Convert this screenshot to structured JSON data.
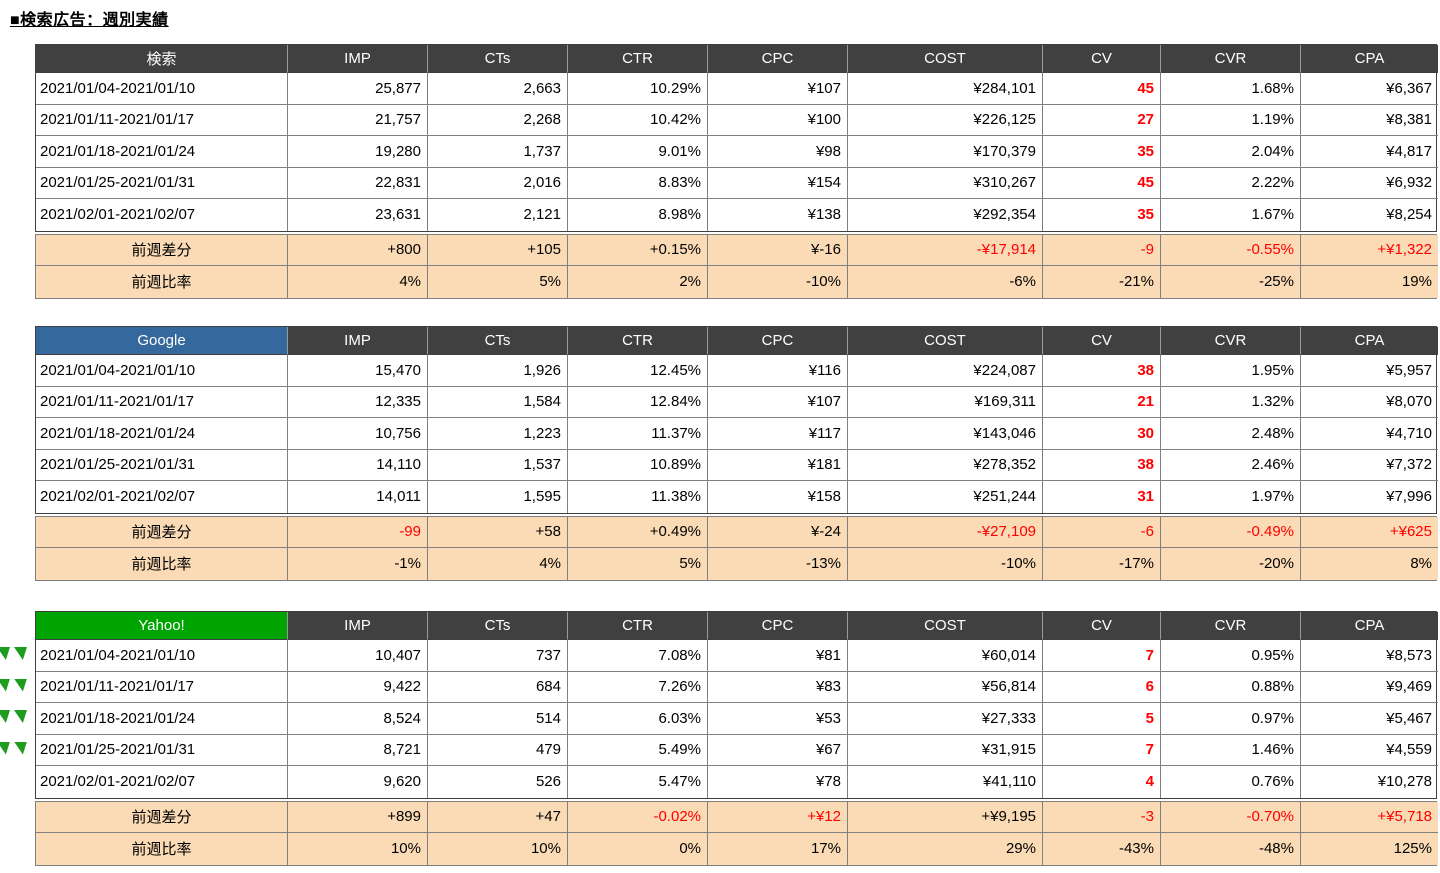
{
  "title": "■検索広告：週別実績",
  "columns": [
    "IMP",
    "CTs",
    "CTR",
    "CPC",
    "COST",
    "CV",
    "CVR",
    "CPA"
  ],
  "colors": {
    "header_bg": "#404040",
    "header_text": "#ffffff",
    "summary_bg": "#fbdbb5",
    "negative_red": "#ff0000",
    "flag_green": "#1e9c1e",
    "search_label_bg": "#404040",
    "google_label_bg": "#35699e",
    "yahoo_label_bg": "#00a400"
  },
  "tables": [
    {
      "label": "検索",
      "label_bg": "#404040",
      "rows": [
        {
          "period": "2021/01/04-2021/01/10",
          "values": [
            "25,877",
            "2,663",
            "10.29%",
            "¥107",
            "¥284,101",
            "45",
            "1.68%",
            "¥6,367"
          ]
        },
        {
          "period": "2021/01/11-2021/01/17",
          "values": [
            "21,757",
            "2,268",
            "10.42%",
            "¥100",
            "¥226,125",
            "27",
            "1.19%",
            "¥8,381"
          ]
        },
        {
          "period": "2021/01/18-2021/01/24",
          "values": [
            "19,280",
            "1,737",
            "9.01%",
            "¥98",
            "¥170,379",
            "35",
            "2.04%",
            "¥4,817"
          ]
        },
        {
          "period": "2021/01/25-2021/01/31",
          "values": [
            "22,831",
            "2,016",
            "8.83%",
            "¥154",
            "¥310,267",
            "45",
            "2.22%",
            "¥6,932"
          ]
        },
        {
          "period": "2021/02/01-2021/02/07",
          "values": [
            "23,631",
            "2,121",
            "8.98%",
            "¥138",
            "¥292,354",
            "35",
            "1.67%",
            "¥8,254"
          ]
        }
      ],
      "diff": {
        "label": "前週差分",
        "values": [
          "+800",
          "+105",
          "+0.15%",
          "¥-16",
          "-¥17,914",
          "-9",
          "-0.55%",
          "+¥1,322"
        ],
        "red": [
          false,
          false,
          false,
          false,
          true,
          true,
          true,
          true
        ]
      },
      "ratio": {
        "label": "前週比率",
        "values": [
          "4%",
          "5%",
          "2%",
          "-10%",
          "-6%",
          "-21%",
          "-25%",
          "19%"
        ]
      },
      "flag_rows": []
    },
    {
      "label": "Google",
      "label_bg": "#35699e",
      "rows": [
        {
          "period": "2021/01/04-2021/01/10",
          "values": [
            "15,470",
            "1,926",
            "12.45%",
            "¥116",
            "¥224,087",
            "38",
            "1.95%",
            "¥5,957"
          ]
        },
        {
          "period": "2021/01/11-2021/01/17",
          "values": [
            "12,335",
            "1,584",
            "12.84%",
            "¥107",
            "¥169,311",
            "21",
            "1.32%",
            "¥8,070"
          ]
        },
        {
          "period": "2021/01/18-2021/01/24",
          "values": [
            "10,756",
            "1,223",
            "11.37%",
            "¥117",
            "¥143,046",
            "30",
            "2.48%",
            "¥4,710"
          ]
        },
        {
          "period": "2021/01/25-2021/01/31",
          "values": [
            "14,110",
            "1,537",
            "10.89%",
            "¥181",
            "¥278,352",
            "38",
            "2.46%",
            "¥7,372"
          ]
        },
        {
          "period": "2021/02/01-2021/02/07",
          "values": [
            "14,011",
            "1,595",
            "11.38%",
            "¥158",
            "¥251,244",
            "31",
            "1.97%",
            "¥7,996"
          ]
        }
      ],
      "diff": {
        "label": "前週差分",
        "values": [
          "-99",
          "+58",
          "+0.49%",
          "¥-24",
          "-¥27,109",
          "-6",
          "-0.49%",
          "+¥625"
        ],
        "red": [
          true,
          false,
          false,
          false,
          true,
          true,
          true,
          true
        ]
      },
      "ratio": {
        "label": "前週比率",
        "values": [
          "-1%",
          "4%",
          "5%",
          "-13%",
          "-10%",
          "-17%",
          "-20%",
          "8%"
        ]
      },
      "flag_rows": []
    },
    {
      "label": "Yahoo!",
      "label_bg": "#00a400",
      "rows": [
        {
          "period": "2021/01/04-2021/01/10",
          "values": [
            "10,407",
            "737",
            "7.08%",
            "¥81",
            "¥60,014",
            "7",
            "0.95%",
            "¥8,573"
          ]
        },
        {
          "period": "2021/01/11-2021/01/17",
          "values": [
            "9,422",
            "684",
            "7.26%",
            "¥83",
            "¥56,814",
            "6",
            "0.88%",
            "¥9,469"
          ]
        },
        {
          "period": "2021/01/18-2021/01/24",
          "values": [
            "8,524",
            "514",
            "6.03%",
            "¥53",
            "¥27,333",
            "5",
            "0.97%",
            "¥5,467"
          ]
        },
        {
          "period": "2021/01/25-2021/01/31",
          "values": [
            "8,721",
            "479",
            "5.49%",
            "¥67",
            "¥31,915",
            "7",
            "1.46%",
            "¥4,559"
          ]
        },
        {
          "period": "2021/02/01-2021/02/07",
          "values": [
            "9,620",
            "526",
            "5.47%",
            "¥78",
            "¥41,110",
            "4",
            "0.76%",
            "¥10,278"
          ]
        }
      ],
      "diff": {
        "label": "前週差分",
        "values": [
          "+899",
          "+47",
          "-0.02%",
          "+¥12",
          "+¥9,195",
          "-3",
          "-0.70%",
          "+¥5,718"
        ],
        "red": [
          false,
          false,
          true,
          true,
          false,
          true,
          true,
          true
        ]
      },
      "ratio": {
        "label": "前週比率",
        "values": [
          "10%",
          "10%",
          "0%",
          "17%",
          "29%",
          "-43%",
          "-48%",
          "125%"
        ]
      },
      "flag_rows": [
        0,
        1,
        2,
        3
      ]
    }
  ]
}
